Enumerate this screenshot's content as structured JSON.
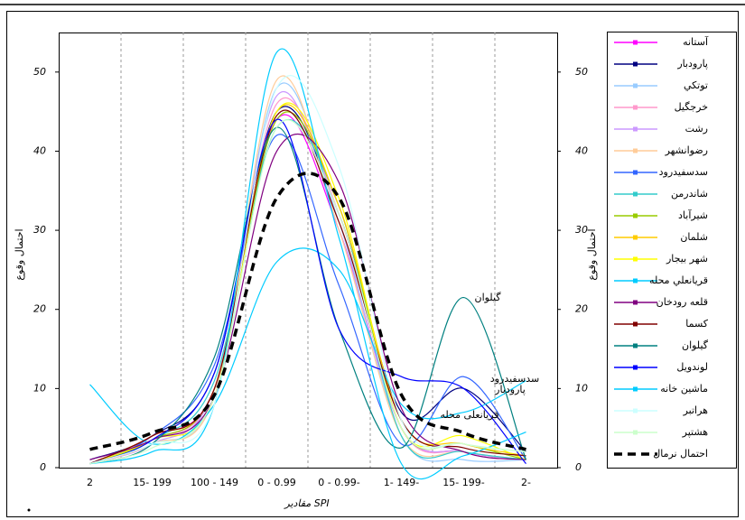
{
  "chart_data": {
    "type": "line",
    "y_label": "احتمال وقوع",
    "x_label": "مقادیر SPI",
    "categories": [
      "2",
      "15- 199",
      "100 - 149",
      "0 - 0.99",
      "0 - 0.99-",
      "1- 149-",
      "15- 199-",
      "2-"
    ],
    "ylim": [
      0,
      55
    ],
    "yticks": [
      0,
      10,
      20,
      30,
      40,
      50
    ],
    "y2lim": [
      0,
      55
    ],
    "y2ticks": [
      0,
      10,
      20,
      30,
      40,
      50
    ],
    "grid": "x",
    "legend": "right",
    "annotations": [
      "گیلوان",
      "سدسفیدرود",
      "پارودبار",
      "قریانعلی محله"
    ],
    "series": [
      {
        "name": "آستانه",
        "color": "#ff00ff",
        "values": [
          0.5,
          4,
          10,
          44,
          30,
          5,
          2,
          1
        ]
      },
      {
        "name": "پارودبار",
        "color": "#000080",
        "values": [
          1,
          4,
          12,
          45,
          32,
          7,
          10,
          2
        ]
      },
      {
        "name": "توتكي",
        "color": "#99ccff",
        "values": [
          0.5,
          3,
          9,
          48,
          31,
          4,
          1,
          1
        ]
      },
      {
        "name": "خرجگيل",
        "color": "#ff99cc",
        "values": [
          0.5,
          3.5,
          10,
          46,
          32,
          5,
          2,
          1
        ]
      },
      {
        "name": "رشت",
        "color": "#cc99ff",
        "values": [
          0.5,
          3,
          10,
          47,
          30,
          5,
          2,
          1
        ]
      },
      {
        "name": "رضوانشهر",
        "color": "#ffcc99",
        "values": [
          0.5,
          3,
          9,
          49,
          30,
          4,
          2,
          1
        ]
      },
      {
        "name": "سدسفيدرود",
        "color": "#3366ff",
        "values": [
          0.5,
          4,
          13,
          42,
          23,
          3,
          11.5,
          1
        ]
      },
      {
        "name": "شاندرمن",
        "color": "#33cccc",
        "values": [
          0.5,
          3.5,
          11,
          43,
          33,
          4,
          2,
          1
        ]
      },
      {
        "name": "شيرآباد",
        "color": "#99cc00",
        "values": [
          0.5,
          3.5,
          10,
          44,
          33,
          5,
          3,
          1
        ]
      },
      {
        "name": "شلمان",
        "color": "#ffcc00",
        "values": [
          0.5,
          4,
          10,
          45,
          33,
          6,
          3,
          1.5
        ]
      },
      {
        "name": "شهر بيجار",
        "color": "#ffff00",
        "values": [
          0.5,
          3.5,
          9,
          45,
          34,
          5,
          4,
          1
        ]
      },
      {
        "name": "قريانعلي محله",
        "color": "#00ccff",
        "values": [
          10.5,
          3,
          8,
          26,
          25,
          8,
          7,
          11
        ]
      },
      {
        "name": "قلعه رودخان",
        "color": "#800080",
        "values": [
          1,
          3.5,
          9,
          40,
          36,
          7.5,
          2,
          1
        ]
      },
      {
        "name": "كسما",
        "color": "#800000",
        "values": [
          0.5,
          4,
          10,
          44.5,
          31,
          6,
          2.5,
          1.5
        ]
      },
      {
        "name": "گيلوان",
        "color": "#008080",
        "values": [
          0.5,
          3,
          14,
          43,
          17.5,
          2.5,
          21.5,
          1
        ]
      },
      {
        "name": "لوندويل",
        "color": "#0000ff",
        "values": [
          0.5,
          3.5,
          12,
          44,
          17.5,
          11.5,
          10,
          0.5
        ]
      },
      {
        "name": "ماشين خانه",
        "color": "#00ccff",
        "values": [
          0.5,
          2,
          8,
          52.5,
          29,
          0.5,
          1.5,
          4.5
        ]
      },
      {
        "name": "هراتبر",
        "color": "#ccffff",
        "values": [
          0.5,
          3,
          8,
          48,
          38,
          6,
          3,
          2
        ]
      },
      {
        "name": "هشتپر",
        "color": "#ccffcc",
        "values": [
          0.5,
          2.5,
          9,
          43,
          32,
          5,
          3,
          2
        ]
      },
      {
        "name": "احتمال نرمال",
        "color": "#000000",
        "style": "dashed",
        "values": [
          2.3,
          4.4,
          9.2,
          34.1,
          34.1,
          9.2,
          4.4,
          2.3
        ]
      }
    ]
  }
}
